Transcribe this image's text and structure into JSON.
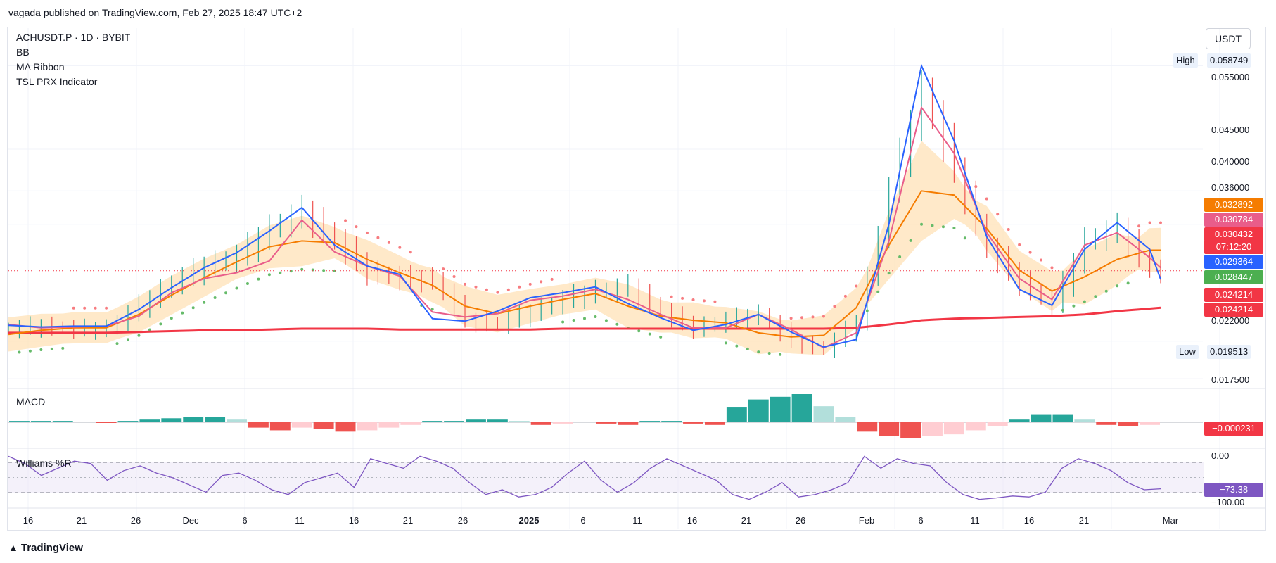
{
  "header": {
    "published_text": "vagada published on TradingView.com, Feb 27, 2025 18:47 UTC+2"
  },
  "legend": {
    "symbol": "ACHUSDT.P · 1D · BYBIT",
    "indicators": [
      "BB",
      "MA Ribbon",
      "TSL PRX Indicator"
    ]
  },
  "unit": "USDT",
  "high_label": {
    "label": "High",
    "value": "0.058749"
  },
  "low_label": {
    "label": "Low",
    "value": "0.019513"
  },
  "price_axis_ticks": [
    "0.055000",
    "0.045000",
    "0.040000",
    "0.036000",
    "0.022000",
    "0.017500"
  ],
  "price_tags": [
    {
      "text": "0.032892",
      "color": "#f57c00",
      "text_color": "#ffffff"
    },
    {
      "text": "0.030784",
      "color": "#e95d8a",
      "text_color": "#ffffff"
    },
    {
      "text": "0.030432",
      "color": "#f23645",
      "text_color": "#ffffff"
    },
    {
      "text": "07:12:20",
      "color": "#f23645",
      "text_color": "#ffffff"
    },
    {
      "text": "0.029364",
      "color": "#2962ff",
      "text_color": "#ffffff"
    },
    {
      "text": "0.028447",
      "color": "#4caf50",
      "text_color": "#ffffff"
    },
    {
      "text": "0.024214",
      "color": "#f23645",
      "text_color": "#ffffff"
    },
    {
      "text": "0.024214",
      "color": "#f23645",
      "text_color": "#ffffff"
    }
  ],
  "macd": {
    "title": "MACD",
    "value_tag": "−0.000231",
    "tag_color": "#f23645"
  },
  "williams": {
    "title": "Williams %R",
    "axis_top": "0.00",
    "axis_bottom": "−100.00",
    "value_tag": "−73.38",
    "tag_color": "#7e57c2"
  },
  "x_axis_ticks": [
    "16",
    "21",
    "26",
    "Dec",
    "6",
    "11",
    "16",
    "21",
    "26",
    "2025",
    "6",
    "11",
    "16",
    "21",
    "26",
    "Feb",
    "6",
    "11",
    "16",
    "21",
    "Mar"
  ],
  "footer": {
    "logo_text": "TradingView"
  },
  "colors": {
    "up": "#26a69a",
    "down": "#ef5350",
    "bb_fill": "#ffe0b2",
    "bb_mid": "#f57c00",
    "ma_fast": "#2962ff",
    "ma_mid": "#e95d8a",
    "ma_slow": "#f23645",
    "psar_up": "#66bb6a",
    "psar_down": "#f77c80",
    "wr_line": "#7e57c2"
  },
  "chart_data": {
    "type": "line",
    "title": "ACHUSDT.P · 1D · BYBIT",
    "xlabel": "",
    "ylabel": "USDT",
    "ylim": [
      0.0165,
      0.0595
    ],
    "x_range": [
      "2024-11-13",
      "2025-03-02"
    ],
    "series": [
      {
        "name": "Price",
        "x": [
          0,
          3,
          6,
          9,
          12,
          15,
          18,
          21,
          24,
          27,
          30,
          33,
          36,
          39,
          42,
          45,
          48,
          51,
          54,
          57,
          60,
          63,
          66,
          69,
          72,
          75,
          78,
          81,
          84,
          87,
          90,
          93,
          96,
          99,
          102,
          105,
          106
        ],
        "values": [
          0.0235,
          0.0238,
          0.0234,
          0.0235,
          0.0262,
          0.029,
          0.031,
          0.0322,
          0.0355,
          0.0375,
          0.034,
          0.0303,
          0.0295,
          0.0294,
          0.0245,
          0.024,
          0.0255,
          0.027,
          0.028,
          0.0285,
          0.0255,
          0.0235,
          0.0245,
          0.0252,
          0.022,
          0.021,
          0.0243,
          0.04,
          0.052,
          0.0425,
          0.033,
          0.029,
          0.0263,
          0.034,
          0.0355,
          0.0305,
          0.0304
        ]
      },
      {
        "values": [
          0.0228,
          0.0233,
          0.0236,
          0.0236,
          0.0252,
          0.0275,
          0.0296,
          0.0315,
          0.0333,
          0.034,
          0.0338,
          0.0318,
          0.0302,
          0.0287,
          0.0262,
          0.0253,
          0.0262,
          0.027,
          0.0277,
          0.0262,
          0.025,
          0.0245,
          0.0242,
          0.023,
          0.0225,
          0.0227,
          0.026,
          0.0335,
          0.04,
          0.0395,
          0.0355,
          0.0305,
          0.028,
          0.0297,
          0.0318,
          0.0329,
          0.0329
        ]
      },
      {
        "values": [
          0.024,
          0.0236,
          0.0237,
          0.0238,
          0.025,
          0.0278,
          0.0295,
          0.0302,
          0.0316,
          0.0365,
          0.0327,
          0.031,
          0.0298,
          0.0255,
          0.0249,
          0.0253,
          0.0269,
          0.0274,
          0.0282,
          0.027,
          0.0252,
          0.0236,
          0.0236,
          0.0252,
          0.0234,
          0.0212,
          0.023,
          0.034,
          0.05,
          0.0445,
          0.035,
          0.0295,
          0.027,
          0.0335,
          0.035,
          0.032,
          0.0308
        ]
      },
      {
        "values": [
          0.0239,
          0.0237,
          0.0238,
          0.0238,
          0.0258,
          0.0284,
          0.0308,
          0.0326,
          0.0352,
          0.038,
          0.0335,
          0.031,
          0.03,
          0.0247,
          0.0244,
          0.0256,
          0.0272,
          0.0278,
          0.0285,
          0.0265,
          0.0248,
          0.0233,
          0.024,
          0.0252,
          0.0231,
          0.0213,
          0.0222,
          0.036,
          0.055,
          0.046,
          0.0345,
          0.0282,
          0.0263,
          0.033,
          0.0362,
          0.033,
          0.0294
        ]
      },
      {
        "values": [
          0.023,
          0.023,
          0.023,
          0.023,
          0.0231,
          0.0232,
          0.0233,
          0.0233,
          0.0234,
          0.0235,
          0.0235,
          0.0235,
          0.0234,
          0.0234,
          0.0234,
          0.0234,
          0.0234,
          0.0235,
          0.0235,
          0.0235,
          0.0235,
          0.0235,
          0.0235,
          0.0235,
          0.0235,
          0.0235,
          0.0236,
          0.024,
          0.0245,
          0.0247,
          0.0248,
          0.0249,
          0.025,
          0.0252,
          0.0256,
          0.0259,
          0.026
        ]
      }
    ],
    "macd_histogram": [
      0.0001,
      0.0001,
      0.0001,
      0.0,
      -5e-05,
      0.0001,
      0.0002,
      0.0003,
      0.0004,
      0.0004,
      0.0002,
      -0.0004,
      -0.0006,
      -0.0004,
      -0.0005,
      -0.0007,
      -0.0006,
      -0.0004,
      -0.0002,
      0.0001,
      0.0001,
      0.0002,
      0.0002,
      0.0001,
      -0.0002,
      -0.0001,
      0.0,
      -0.0001,
      -0.0002,
      0.0001,
      0.0001,
      -0.0001,
      -0.0002,
      0.0011,
      0.0017,
      0.0019,
      0.0021,
      0.0012,
      0.0004,
      -0.0007,
      -0.001,
      -0.0012,
      -0.001,
      -0.0009,
      -0.0006,
      -0.0003,
      0.0002,
      0.0006,
      0.0006,
      0.0002,
      -0.0002,
      -0.0003,
      -0.0002
    ],
    "williams_r": [
      -5,
      -20,
      -45,
      -30,
      -15,
      -20,
      -55,
      -35,
      -25,
      -40,
      -50,
      -65,
      -80,
      -45,
      -40,
      -55,
      -75,
      -85,
      -60,
      -50,
      -40,
      -70,
      -10,
      -20,
      -30,
      -5,
      -15,
      -30,
      -60,
      -85,
      -75,
      -90,
      -85,
      -70,
      -40,
      -15,
      -55,
      -80,
      -60,
      -30,
      -10,
      -25,
      -40,
      -55,
      -85,
      -95,
      -80,
      -60,
      -90,
      -85,
      -75,
      -60,
      -5,
      -30,
      -10,
      -20,
      -25,
      -60,
      -85,
      -95,
      -92,
      -88,
      -90,
      -80,
      -30,
      -10,
      -20,
      -35,
      -60,
      -75,
      -73
    ]
  }
}
